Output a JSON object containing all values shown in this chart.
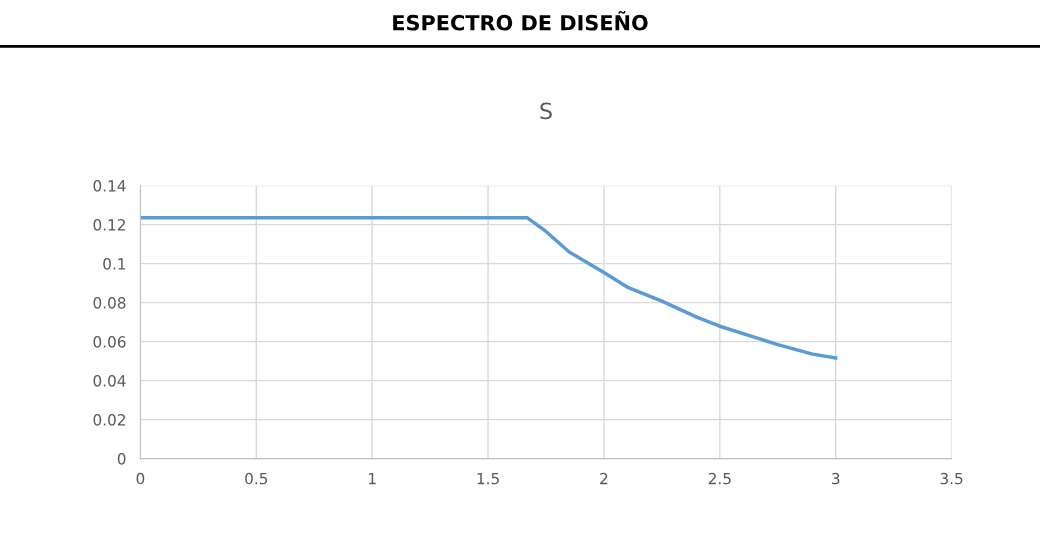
{
  "chart_data": {
    "type": "line",
    "title": "ESPECTRO DE DISEÑO",
    "subtitle": "S",
    "series": [
      {
        "color": "#5b9bd5",
        "x": [
          0,
          1.67,
          1.75,
          1.85,
          2,
          2.1,
          2.25,
          2.4,
          2.5,
          2.75,
          2.9,
          3
        ],
        "values": [
          0.1235,
          0.1235,
          0.1165,
          0.106,
          0.0954,
          0.088,
          0.0808,
          0.0726,
          0.0679,
          0.0585,
          0.0536,
          0.0516
        ]
      }
    ],
    "xlim": [
      0,
      3.5
    ],
    "xticks": [
      0,
      0.5,
      1,
      1.5,
      2,
      2.5,
      3,
      3.5
    ],
    "ylim": [
      0,
      0.14
    ],
    "yticks": [
      0,
      0.02,
      0.04,
      0.06,
      0.08,
      0.1,
      0.12,
      0.14
    ],
    "grid": true,
    "legend": false,
    "marker": "none",
    "line_style": "solid"
  }
}
